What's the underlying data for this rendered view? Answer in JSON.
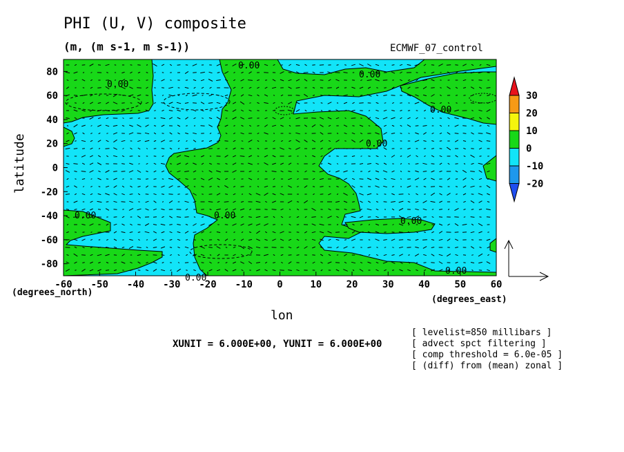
{
  "chart_data": {
    "type": "contour",
    "title": "PHI (U, V) composite",
    "subtitle": "(m, (m s-1, m s-1))",
    "experiment": "ECMWF_07_control",
    "xlabel": "lon",
    "ylabel": "latitude",
    "x_units": "(degrees_east)",
    "y_units": "(degrees_north)",
    "xlim": [
      -60,
      60
    ],
    "ylim": [
      -90,
      90
    ],
    "x_ticks": [
      "-60",
      "-50",
      "-40",
      "-30",
      "-20",
      "-10",
      "0",
      "10",
      "20",
      "30",
      "40",
      "50",
      "60"
    ],
    "y_ticks": [
      "80",
      "60",
      "40",
      "20",
      "0",
      "-20",
      "-40",
      "-60",
      "-80"
    ],
    "colorbar": {
      "levels": [
        "30",
        "20",
        "10",
        "0",
        "-10",
        "-20"
      ],
      "colors": [
        "#e8121c",
        "#f79a16",
        "#f5f50d",
        "#18d818",
        "#12e4f8",
        "#1e98ec",
        "#1f4ef0"
      ]
    },
    "contour_labels": [
      "0.00",
      "0.00",
      "0.00",
      "0.00",
      "0.00",
      "0.00",
      "0.00",
      "0.00",
      "0.00",
      "0.00"
    ],
    "vector_unit": "XUNIT = 6.000E+00, YUNIT = 6.000E+00",
    "notes": [
      "[ levelist=850 millibars ]",
      "[ advect spct filtering ]",
      "[ comp threshold = 6.0e-05 ]",
      "[ (diff) from (mean) zonal ]"
    ],
    "regions_positive": "green (0 to 10)",
    "regions_negative": "cyan (-10 to 0)"
  }
}
